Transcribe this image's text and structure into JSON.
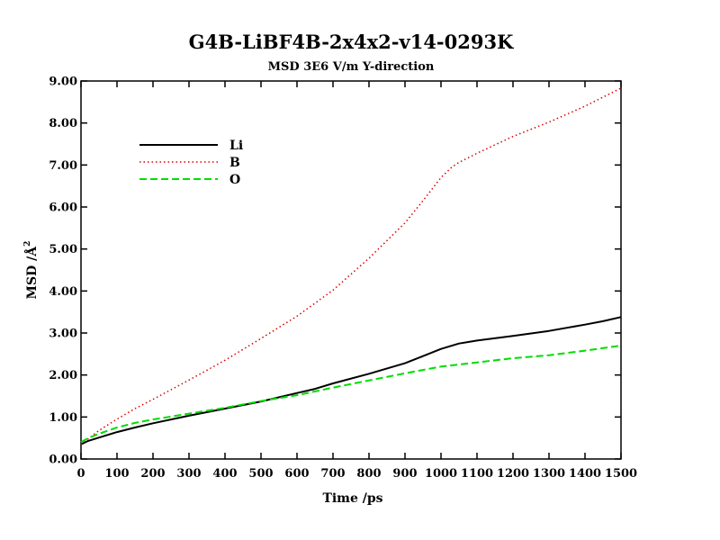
{
  "chart_data": {
    "type": "line",
    "title": "G4B-LiBF4B-2x4x2-v14-0293K",
    "subtitle": "MSD  3E6 V/m Y-direction",
    "xlabel": "Time /ps",
    "ylabel": "MSD /Å",
    "ylabel_superscript": "2",
    "xlim": [
      0,
      1500
    ],
    "ylim": [
      0,
      9
    ],
    "xticks": [
      "0",
      "100",
      "200",
      "300",
      "400",
      "500",
      "600",
      "700",
      "800",
      "900",
      "1000",
      "1100",
      "1200",
      "1300",
      "1400",
      "1500"
    ],
    "yticks": [
      "0.00",
      "1.00",
      "2.00",
      "3.00",
      "4.00",
      "5.00",
      "6.00",
      "7.00",
      "8.00",
      "9.00"
    ],
    "grid": false,
    "legend_position": "top-left",
    "series": [
      {
        "name": "Li",
        "color": "#000000",
        "style": "solid",
        "x": [
          0,
          20,
          50,
          100,
          150,
          200,
          300,
          400,
          500,
          600,
          650,
          700,
          800,
          900,
          950,
          1000,
          1050,
          1100,
          1200,
          1300,
          1400,
          1450,
          1500
        ],
        "y": [
          0.35,
          0.43,
          0.51,
          0.64,
          0.75,
          0.85,
          1.03,
          1.2,
          1.37,
          1.57,
          1.67,
          1.8,
          2.03,
          2.28,
          2.45,
          2.62,
          2.75,
          2.82,
          2.93,
          3.05,
          3.2,
          3.28,
          3.38
        ]
      },
      {
        "name": "B",
        "color": "#dd0000",
        "style": "dotted",
        "x": [
          0,
          20,
          50,
          100,
          150,
          200,
          300,
          400,
          500,
          600,
          700,
          800,
          900,
          950,
          1000,
          1030,
          1050,
          1100,
          1200,
          1300,
          1400,
          1500
        ],
        "y": [
          0.35,
          0.48,
          0.68,
          0.95,
          1.2,
          1.42,
          1.88,
          2.35,
          2.87,
          3.4,
          4.02,
          4.78,
          5.62,
          6.15,
          6.7,
          6.95,
          7.06,
          7.28,
          7.68,
          8.02,
          8.4,
          8.83
        ]
      },
      {
        "name": "O",
        "color": "#00dd00",
        "style": "dashed",
        "x": [
          0,
          20,
          50,
          100,
          150,
          200,
          300,
          400,
          500,
          600,
          700,
          800,
          900,
          1000,
          1100,
          1200,
          1300,
          1400,
          1450,
          1500
        ],
        "y": [
          0.4,
          0.5,
          0.6,
          0.75,
          0.86,
          0.94,
          1.08,
          1.22,
          1.38,
          1.52,
          1.7,
          1.87,
          2.04,
          2.2,
          2.3,
          2.4,
          2.47,
          2.58,
          2.64,
          2.7
        ]
      }
    ]
  }
}
